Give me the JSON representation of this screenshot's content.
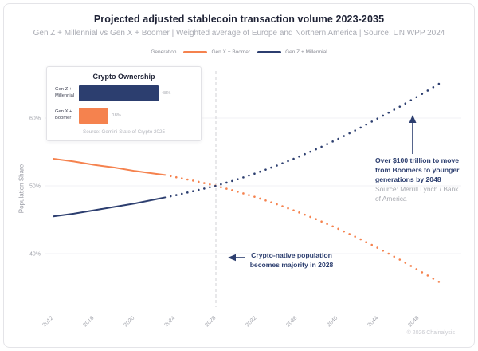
{
  "header": {
    "title": "Projected adjusted stablecoin transaction volume 2023-2035",
    "subtitle": "Gen Z + Millennial vs Gen X + Boomer | Weighted average of Europe and Northern America | Source: UN WPP 2024"
  },
  "legend": {
    "label": "Generation",
    "items": [
      {
        "name": "Gen X + Boomer",
        "color": "#F5824E"
      },
      {
        "name": "Gen Z + Millennial",
        "color": "#2C3E6F"
      }
    ]
  },
  "inset": {
    "title": "Crypto Ownership",
    "source": "Source: Gemini State of Crypto 2025",
    "bars": [
      {
        "label": "Gen Z + Millennial",
        "value": 48,
        "value_label": "48%",
        "color": "#2C3E6F"
      },
      {
        "label": "Gen X + Boomer",
        "value": 18,
        "value_label": "18%",
        "color": "#F5824E"
      }
    ]
  },
  "annotations": {
    "wealth_transfer": {
      "text": "Over $100 trillion to move from Boomers to younger generations by 2048",
      "source": "Source: Merrill Lynch / Bank of America"
    },
    "majority": {
      "text": "Crypto-native population becomes majority in 2028"
    }
  },
  "footer": {
    "copyright": "© 2026 Chainalysis"
  },
  "chart_data": {
    "type": "line",
    "title": "Projected adjusted stablecoin transaction volume 2023-2035",
    "xlabel": "",
    "ylabel": "Population Share",
    "x_ticks": [
      2012,
      2016,
      2020,
      2024,
      2028,
      2032,
      2036,
      2040,
      2044,
      2048
    ],
    "y_ticks": [
      40,
      50,
      60
    ],
    "x_range": [
      2012,
      2050
    ],
    "y_range": [
      34,
      67
    ],
    "grid": true,
    "legend_position": "top",
    "solid_until": 2023,
    "event_line_year": 2028,
    "series": [
      {
        "name": "Gen X + Boomer",
        "color": "#F5824E",
        "points": [
          [
            2012,
            54.0
          ],
          [
            2014,
            53.6
          ],
          [
            2016,
            53.1
          ],
          [
            2018,
            52.7
          ],
          [
            2020,
            52.2
          ],
          [
            2022,
            51.8
          ],
          [
            2023,
            51.6
          ],
          [
            2024,
            51.3
          ],
          [
            2026,
            50.7
          ],
          [
            2028,
            50.0
          ],
          [
            2030,
            49.2
          ],
          [
            2032,
            48.3
          ],
          [
            2034,
            47.3
          ],
          [
            2036,
            46.2
          ],
          [
            2038,
            45.0
          ],
          [
            2040,
            43.7
          ],
          [
            2042,
            42.3
          ],
          [
            2044,
            40.8
          ],
          [
            2046,
            39.2
          ],
          [
            2048,
            37.5
          ],
          [
            2050,
            35.8
          ]
        ]
      },
      {
        "name": "Gen Z + Millennial",
        "color": "#2C3E6F",
        "points": [
          [
            2012,
            45.5
          ],
          [
            2014,
            45.9
          ],
          [
            2016,
            46.4
          ],
          [
            2018,
            46.9
          ],
          [
            2020,
            47.4
          ],
          [
            2022,
            48.0
          ],
          [
            2023,
            48.3
          ],
          [
            2024,
            48.6
          ],
          [
            2026,
            49.3
          ],
          [
            2028,
            50.0
          ],
          [
            2030,
            50.9
          ],
          [
            2032,
            51.9
          ],
          [
            2034,
            53.0
          ],
          [
            2036,
            54.2
          ],
          [
            2038,
            55.5
          ],
          [
            2040,
            56.9
          ],
          [
            2042,
            58.4
          ],
          [
            2044,
            60.0
          ],
          [
            2046,
            61.6
          ],
          [
            2048,
            63.3
          ],
          [
            2050,
            65.1
          ]
        ]
      }
    ]
  }
}
